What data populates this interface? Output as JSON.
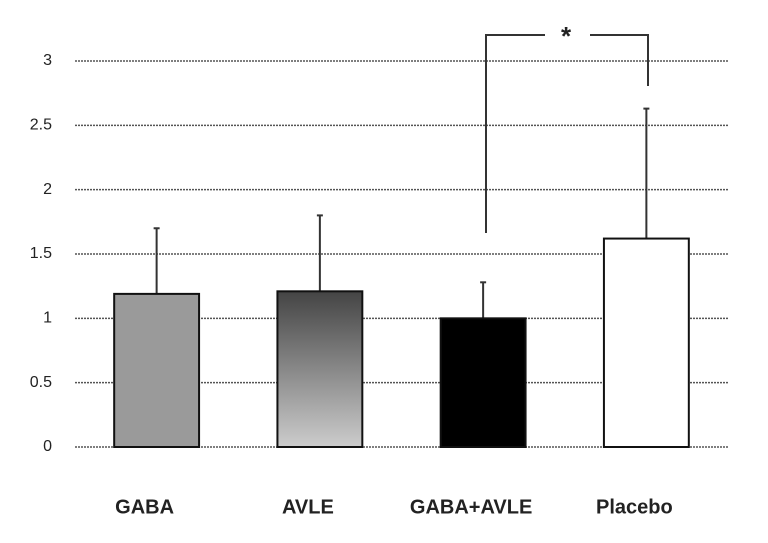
{
  "chart_data": {
    "type": "bar",
    "categories": [
      "GABA",
      "AVLE",
      "GABA+AVLE",
      "Placebo"
    ],
    "values": [
      1.19,
      1.21,
      1.0,
      1.62
    ],
    "errors": [
      0.51,
      0.59,
      0.28,
      1.01
    ],
    "colors": [
      "#9a9a9a",
      "#8a8a8a",
      "#000000",
      "#ffffff"
    ],
    "ylim": [
      0,
      3
    ],
    "yticks": [
      0,
      0.5,
      1,
      1.5,
      2,
      2.5,
      3
    ],
    "grid": true,
    "annotation": "*"
  }
}
